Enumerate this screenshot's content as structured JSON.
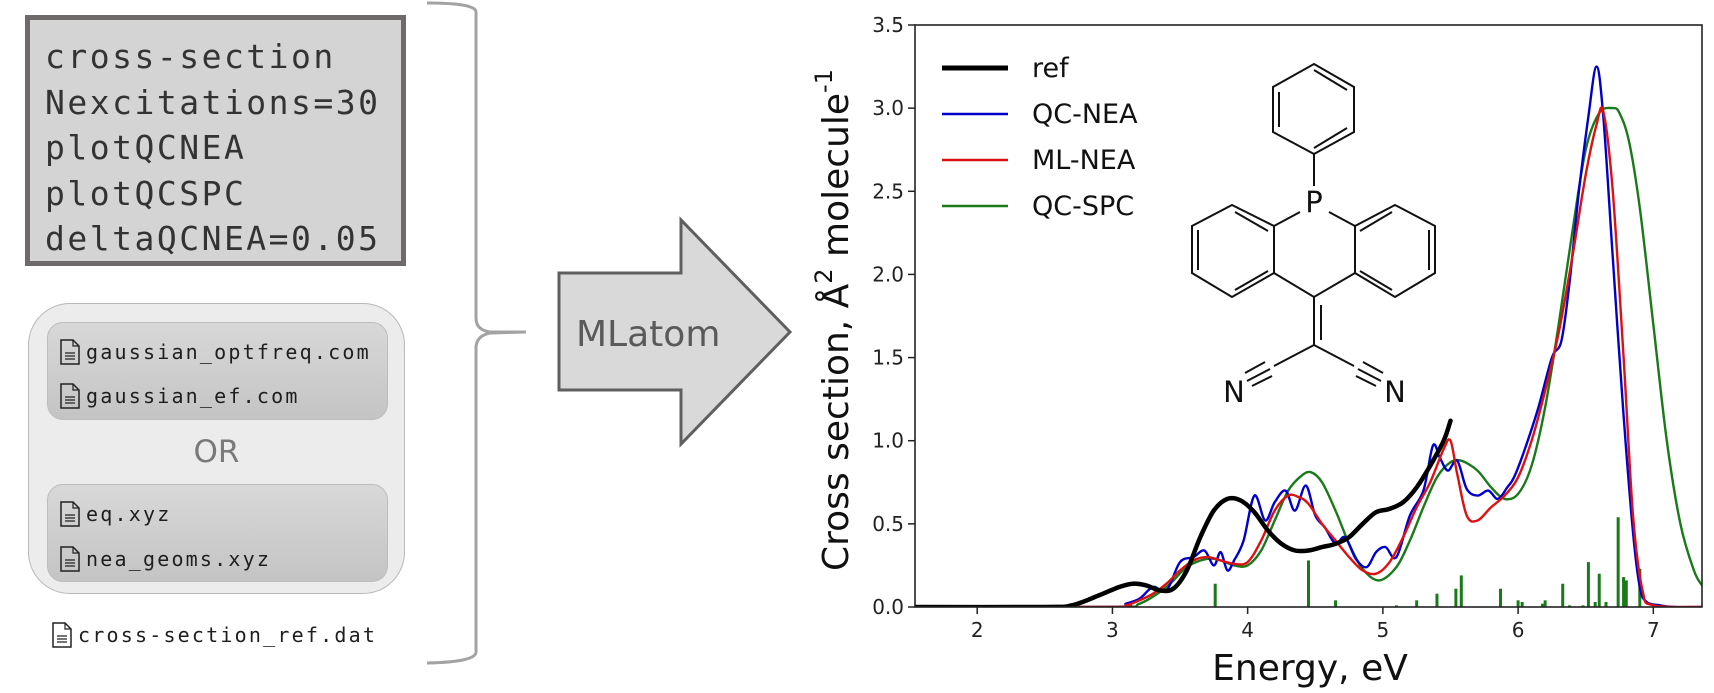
{
  "input_commands": {
    "lines": [
      "cross-section",
      "Nexcitations=30",
      "plotQCNEA",
      "plotQCSPC",
      "deltaQCNEA=0.05"
    ]
  },
  "input_files": {
    "group_a": [
      {
        "name": "gaussian_optfreq.com",
        "icon": "file-icon"
      },
      {
        "name": "gaussian_ef.com",
        "icon": "file-icon"
      }
    ],
    "separator": "OR",
    "group_b": [
      {
        "name": "eq.xyz",
        "icon": "file-icon"
      },
      {
        "name": "nea_geoms.xyz",
        "icon": "file-icon"
      }
    ],
    "reference_file": {
      "name": "cross-section_ref.dat",
      "icon": "file-icon"
    }
  },
  "arrow": {
    "label": "MLatom"
  },
  "molecule": {
    "atom_labels": {
      "phosphorus": "P",
      "nitrogen_left": "N",
      "nitrogen_right": "N"
    }
  },
  "chart_data": {
    "type": "line",
    "title": "",
    "xlabel": "Energy, eV",
    "ylabel": "Cross section, Å² molecule⁻¹",
    "ylabel_parts": {
      "main": "Cross section, Å",
      "sup1": "2",
      "mid": " molecule",
      "sup2": "-1"
    },
    "xlim": [
      1.54,
      7.36
    ],
    "ylim": [
      0,
      3.5
    ],
    "xticks": [
      2,
      3,
      4,
      5,
      6,
      7
    ],
    "xtick_labels": [
      "2",
      "3",
      "4",
      "5",
      "6",
      "7"
    ],
    "yticks": [
      0.0,
      0.5,
      1.0,
      1.5,
      2.0,
      2.5,
      3.0,
      3.5
    ],
    "ytick_labels": [
      "0.0",
      "0.5",
      "1.0",
      "1.5",
      "2.0",
      "2.5",
      "3.0",
      "3.5"
    ],
    "grid": false,
    "legend_position": "top-left",
    "series": [
      {
        "name": "ref",
        "color": "#000000",
        "x": [
          1.54,
          2.5,
          2.7,
          2.9,
          3.05,
          3.15,
          3.25,
          3.35,
          3.45,
          3.55,
          3.65,
          3.75,
          3.85,
          3.95,
          4.05,
          4.15,
          4.25,
          4.35,
          4.45,
          4.55,
          4.65,
          4.75,
          4.85,
          4.95,
          5.05,
          5.15,
          5.25,
          5.35,
          5.45,
          5.5
        ],
        "y": [
          0.0,
          0.0,
          0.01,
          0.07,
          0.12,
          0.14,
          0.13,
          0.1,
          0.11,
          0.22,
          0.42,
          0.58,
          0.65,
          0.64,
          0.57,
          0.46,
          0.38,
          0.34,
          0.34,
          0.36,
          0.38,
          0.42,
          0.5,
          0.57,
          0.59,
          0.63,
          0.72,
          0.85,
          1.0,
          1.12
        ]
      },
      {
        "name": "QC-NEA",
        "color": "#0000cc",
        "x": [
          1.54,
          3.0,
          3.1,
          3.2,
          3.3,
          3.4,
          3.5,
          3.6,
          3.68,
          3.75,
          3.8,
          3.85,
          3.9,
          3.97,
          4.05,
          4.13,
          4.2,
          4.28,
          4.35,
          4.43,
          4.5,
          4.57,
          4.65,
          4.72,
          4.8,
          4.88,
          4.95,
          5.02,
          5.1,
          5.2,
          5.3,
          5.37,
          5.42,
          5.48,
          5.55,
          5.62,
          5.7,
          5.78,
          5.85,
          5.92,
          5.97,
          6.05,
          6.15,
          6.25,
          6.32,
          6.38,
          6.45,
          6.52,
          6.58,
          6.63,
          6.7,
          6.78,
          6.85,
          6.9,
          6.95,
          7.05,
          7.15,
          7.36
        ],
        "y": [
          0.0,
          0.0,
          0.02,
          0.05,
          0.12,
          0.1,
          0.27,
          0.3,
          0.34,
          0.25,
          0.33,
          0.22,
          0.28,
          0.4,
          0.67,
          0.52,
          0.63,
          0.7,
          0.58,
          0.73,
          0.55,
          0.48,
          0.38,
          0.42,
          0.29,
          0.24,
          0.33,
          0.36,
          0.3,
          0.55,
          0.7,
          0.97,
          0.9,
          0.82,
          0.88,
          0.71,
          0.67,
          0.7,
          0.65,
          0.72,
          0.78,
          0.95,
          1.2,
          1.5,
          1.6,
          1.95,
          2.5,
          2.95,
          3.25,
          2.95,
          2.1,
          1.15,
          0.45,
          0.12,
          0.03,
          0.01,
          0.0,
          0.0
        ]
      },
      {
        "name": "ML-NEA",
        "color": "#dd1111",
        "x": [
          1.54,
          3.0,
          3.1,
          3.2,
          3.3,
          3.4,
          3.5,
          3.6,
          3.7,
          3.8,
          3.9,
          4.0,
          4.1,
          4.2,
          4.3,
          4.38,
          4.45,
          4.55,
          4.65,
          4.75,
          4.85,
          4.95,
          5.05,
          5.15,
          5.25,
          5.35,
          5.45,
          5.5,
          5.55,
          5.62,
          5.7,
          5.8,
          5.9,
          6.0,
          6.1,
          6.2,
          6.3,
          6.4,
          6.5,
          6.58,
          6.63,
          6.7,
          6.78,
          6.85,
          6.92,
          7.0,
          7.36
        ],
        "y": [
          0.0,
          0.0,
          0.01,
          0.04,
          0.08,
          0.14,
          0.22,
          0.28,
          0.3,
          0.28,
          0.26,
          0.27,
          0.4,
          0.58,
          0.67,
          0.66,
          0.62,
          0.5,
          0.4,
          0.3,
          0.22,
          0.2,
          0.27,
          0.42,
          0.6,
          0.75,
          0.95,
          1.0,
          0.8,
          0.55,
          0.52,
          0.6,
          0.67,
          0.78,
          1.0,
          1.3,
          1.65,
          2.1,
          2.6,
          2.9,
          2.98,
          2.5,
          1.5,
          0.55,
          0.1,
          0.01,
          0.0
        ]
      },
      {
        "name": "QC-SPC",
        "color": "#1a7a1a",
        "x": [
          1.54,
          3.0,
          3.2,
          3.4,
          3.55,
          3.7,
          3.8,
          3.9,
          4.0,
          4.1,
          4.2,
          4.3,
          4.4,
          4.47,
          4.55,
          4.65,
          4.75,
          4.85,
          4.97,
          5.1,
          5.2,
          5.3,
          5.4,
          5.5,
          5.58,
          5.7,
          5.8,
          5.9,
          6.0,
          6.1,
          6.2,
          6.3,
          6.4,
          6.5,
          6.6,
          6.7,
          6.75,
          6.82,
          6.9,
          7.0,
          7.1,
          7.2,
          7.3,
          7.36
        ],
        "y": [
          0.0,
          0.0,
          0.02,
          0.12,
          0.24,
          0.29,
          0.28,
          0.25,
          0.25,
          0.34,
          0.52,
          0.7,
          0.79,
          0.81,
          0.75,
          0.58,
          0.38,
          0.23,
          0.16,
          0.24,
          0.4,
          0.6,
          0.78,
          0.87,
          0.88,
          0.82,
          0.72,
          0.65,
          0.68,
          0.85,
          1.2,
          1.7,
          2.25,
          2.75,
          2.97,
          3.0,
          2.97,
          2.8,
          2.4,
          1.7,
          1.0,
          0.5,
          0.22,
          0.13
        ]
      }
    ],
    "sticks": {
      "name": "QC-SPC oscillator strengths",
      "color": "#1a7a1a",
      "x": [
        3.76,
        4.45,
        4.65,
        5.1,
        5.25,
        5.4,
        5.54,
        5.58,
        5.87,
        6.0,
        6.03,
        6.18,
        6.2,
        6.33,
        6.38,
        6.48,
        6.52,
        6.57,
        6.6,
        6.65,
        6.74,
        6.78,
        6.8,
        6.9
      ],
      "y": [
        0.14,
        0.28,
        0.04,
        0.01,
        0.04,
        0.08,
        0.11,
        0.19,
        0.11,
        0.04,
        0.03,
        0.02,
        0.04,
        0.14,
        0.01,
        0.01,
        0.27,
        0.03,
        0.2,
        0.03,
        0.54,
        0.18,
        0.16,
        0.23
      ]
    }
  }
}
